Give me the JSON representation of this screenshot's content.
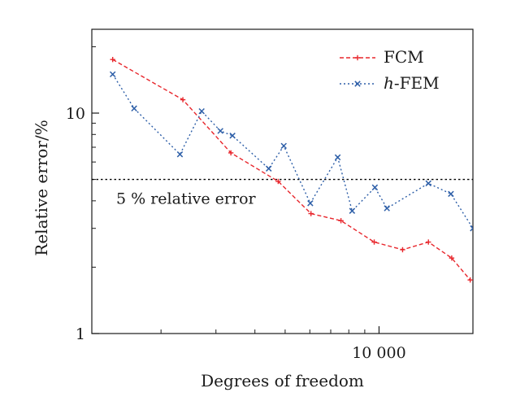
{
  "chart_data": {
    "type": "line",
    "xlabel": "Degrees of freedom",
    "ylabel": "Relative error/%",
    "x_scale": "log",
    "y_scale": "log",
    "xlim": [
      1200,
      20000
    ],
    "ylim": [
      1,
      24
    ],
    "x_ticks": [
      {
        "value": 10000,
        "label": "10 000"
      }
    ],
    "y_ticks": [
      {
        "value": 1,
        "label": "1"
      },
      {
        "value": 10,
        "label": "10"
      }
    ],
    "reference_line": {
      "y": 5,
      "label": "5 % relative error",
      "style": "dotted",
      "color": "#000000"
    },
    "legend_position": "top-right",
    "series": [
      {
        "name": "FCM",
        "name_parts": {
          "prefix": "",
          "rest": "FCM"
        },
        "color": "#e8262c",
        "line_style": "dashed",
        "marker": "plus",
        "x": [
          1400,
          2350,
          3350,
          4750,
          6050,
          7550,
          9650,
          11900,
          14400,
          17100,
          19600
        ],
        "y": [
          17.5,
          11.5,
          6.6,
          4.9,
          3.5,
          3.25,
          2.6,
          2.4,
          2.6,
          2.2,
          1.75
        ]
      },
      {
        "name": "h-FEM",
        "name_parts": {
          "prefix": "h",
          "rest": "-FEM"
        },
        "color": "#2e5fa8",
        "line_style": "dotted",
        "marker": "x",
        "x": [
          1400,
          1640,
          2300,
          2700,
          3100,
          3390,
          4430,
          4950,
          6020,
          7370,
          8200,
          9700,
          10600,
          14400,
          17000,
          20000
        ],
        "y": [
          15.0,
          10.5,
          6.5,
          10.2,
          8.3,
          7.9,
          5.6,
          7.1,
          3.9,
          6.3,
          3.6,
          4.6,
          3.7,
          4.8,
          4.3,
          3.0
        ]
      }
    ]
  }
}
